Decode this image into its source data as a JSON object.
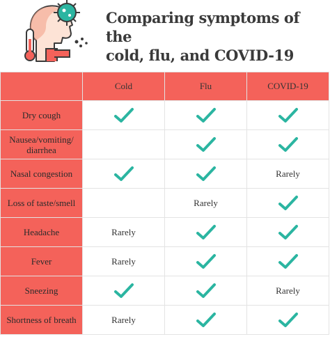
{
  "title": {
    "line1": "Comparing symptoms of the",
    "line2": "cold, flu, and COVID-19"
  },
  "icon": "sick-person-thermometer-virus-icon",
  "colors": {
    "header_bg": "#f4625a",
    "check": "#2bb5a1",
    "title": "#3a3a3a"
  },
  "columns": [
    "",
    "Cold",
    "Flu",
    "COVID-19"
  ],
  "rows": [
    {
      "symptom": "Dry cough",
      "cells": [
        "check",
        "check",
        "check"
      ]
    },
    {
      "symptom": "Nausea/vomiting/ diarrhea",
      "cells": [
        "",
        "check",
        "check"
      ]
    },
    {
      "symptom": "Nasal congestion",
      "cells": [
        "check",
        "check",
        "Rarely"
      ]
    },
    {
      "symptom": "Loss of taste/smell",
      "cells": [
        "",
        "Rarely",
        "check"
      ]
    },
    {
      "symptom": "Headache",
      "cells": [
        "Rarely",
        "check",
        "check"
      ]
    },
    {
      "symptom": "Fever",
      "cells": [
        "Rarely",
        "check",
        "check"
      ]
    },
    {
      "symptom": "Sneezing",
      "cells": [
        "check",
        "check",
        "Rarely"
      ]
    },
    {
      "symptom": "Shortness of breath",
      "cells": [
        "Rarely",
        "check",
        "check"
      ]
    }
  ]
}
